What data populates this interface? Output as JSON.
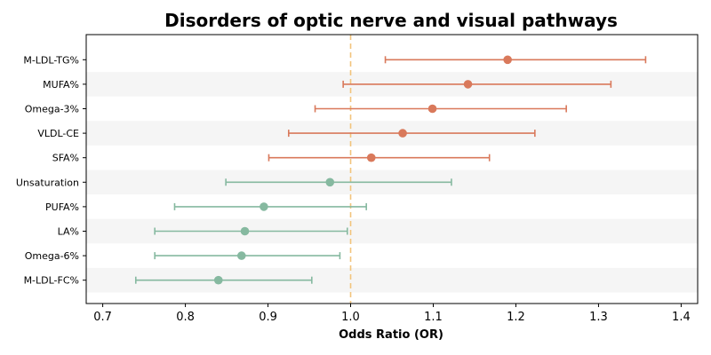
{
  "chart_data": {
    "type": "forest",
    "title": "Disorders of optic nerve and visual pathways",
    "xlabel": "Odds Ratio (OR)",
    "ylabel": "",
    "xlim": [
      0.68,
      1.42
    ],
    "x_ticks": [
      0.7,
      0.8,
      0.9,
      1.0,
      1.1,
      1.2,
      1.3,
      1.4
    ],
    "x_tick_labels": [
      "0.7",
      "0.8",
      "0.9",
      "1.0",
      "1.1",
      "1.2",
      "1.3",
      "1.4"
    ],
    "reference_line": 1.0,
    "grid": false,
    "row_banding": true,
    "colors": {
      "positive": "#d9795b",
      "negative": "#86b9a0",
      "reference_line": "#f2c47c",
      "band": "#f5f5f5"
    },
    "points": [
      {
        "label": "M-LDL-TG%",
        "or": 1.19,
        "lower": 1.042,
        "upper": 1.357
      },
      {
        "label": "MUFA%",
        "or": 1.142,
        "lower": 0.991,
        "upper": 1.315
      },
      {
        "label": "Omega-3%",
        "or": 1.099,
        "lower": 0.957,
        "upper": 1.261
      },
      {
        "label": "VLDL-CE",
        "or": 1.063,
        "lower": 0.925,
        "upper": 1.223
      },
      {
        "label": "SFA%",
        "or": 1.025,
        "lower": 0.901,
        "upper": 1.168
      },
      {
        "label": "Unsaturation",
        "or": 0.975,
        "lower": 0.849,
        "upper": 1.122
      },
      {
        "label": "PUFA%",
        "or": 0.895,
        "lower": 0.787,
        "upper": 1.019
      },
      {
        "label": "LA%",
        "or": 0.872,
        "lower": 0.763,
        "upper": 0.996
      },
      {
        "label": "Omega-6%",
        "or": 0.868,
        "lower": 0.763,
        "upper": 0.987
      },
      {
        "label": "M-LDL-FC%",
        "or": 0.84,
        "lower": 0.74,
        "upper": 0.953
      }
    ]
  }
}
